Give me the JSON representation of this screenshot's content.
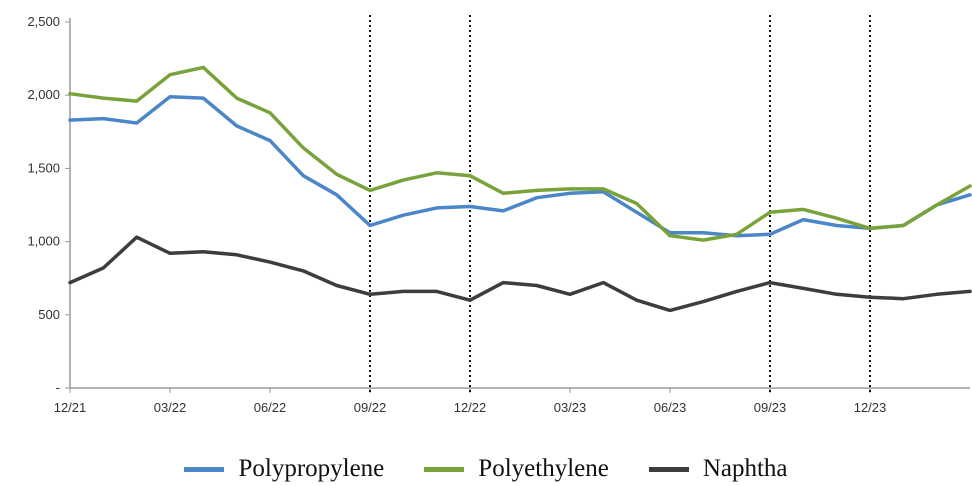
{
  "chart_data": {
    "type": "line",
    "title": "",
    "xlabel": "",
    "ylabel": "",
    "ylim": [
      0,
      2500
    ],
    "y_ticks": [
      {
        "value": 0,
        "label": "-"
      },
      {
        "value": 500,
        "label": "500"
      },
      {
        "value": 1000,
        "label": "1,000"
      },
      {
        "value": 1500,
        "label": "1,500"
      },
      {
        "value": 2000,
        "label": "2,000"
      },
      {
        "value": 2500,
        "label": "2,500"
      }
    ],
    "x_range": [
      "2021-12",
      "2024-03"
    ],
    "x_ticks": [
      {
        "date": "2021-12",
        "label": "12/21"
      },
      {
        "date": "2022-03",
        "label": "03/22"
      },
      {
        "date": "2022-06",
        "label": "06/22"
      },
      {
        "date": "2022-09",
        "label": "09/22"
      },
      {
        "date": "2022-12",
        "label": "12/22"
      },
      {
        "date": "2023-03",
        "label": "03/23"
      },
      {
        "date": "2023-06",
        "label": "06/23"
      },
      {
        "date": "2023-09",
        "label": "09/23"
      },
      {
        "date": "2023-12",
        "label": "12/23"
      }
    ],
    "vertical_dotted_lines": [
      "2022-09",
      "2022-12",
      "2023-09",
      "2023-12"
    ],
    "grid": false,
    "legend": "bottom",
    "x": [
      "2021-12",
      "2022-01",
      "2022-02",
      "2022-03",
      "2022-04",
      "2022-05",
      "2022-06",
      "2022-07",
      "2022-08",
      "2022-09",
      "2022-10",
      "2022-11",
      "2022-12",
      "2023-01",
      "2023-02",
      "2023-03",
      "2023-04",
      "2023-05",
      "2023-06",
      "2023-07",
      "2023-08",
      "2023-09",
      "2023-10",
      "2023-11",
      "2023-12",
      "2024-01",
      "2024-02",
      "2024-03"
    ],
    "series": [
      {
        "name": "Polypropylene",
        "color": "#4a86c8",
        "values": [
          1830,
          1840,
          1810,
          1990,
          1980,
          1790,
          1690,
          1450,
          1320,
          1110,
          1180,
          1230,
          1240,
          1210,
          1300,
          1330,
          1340,
          1200,
          1060,
          1060,
          1040,
          1050,
          1150,
          1110,
          1090,
          1110,
          1250,
          1320
        ]
      },
      {
        "name": "Polyethylene",
        "color": "#79a33a",
        "values": [
          2010,
          1980,
          1960,
          2140,
          2190,
          1980,
          1880,
          1640,
          1460,
          1350,
          1420,
          1470,
          1450,
          1330,
          1350,
          1360,
          1360,
          1260,
          1040,
          1010,
          1050,
          1200,
          1220,
          1160,
          1090,
          1110,
          1250,
          1380
        ]
      },
      {
        "name": "Naphtha",
        "color": "#3d3d3d",
        "values": [
          720,
          820,
          1030,
          920,
          930,
          910,
          860,
          800,
          700,
          640,
          660,
          660,
          600,
          720,
          700,
          640,
          720,
          600,
          530,
          590,
          660,
          720,
          680,
          640,
          620,
          610,
          640,
          660
        ]
      }
    ]
  }
}
